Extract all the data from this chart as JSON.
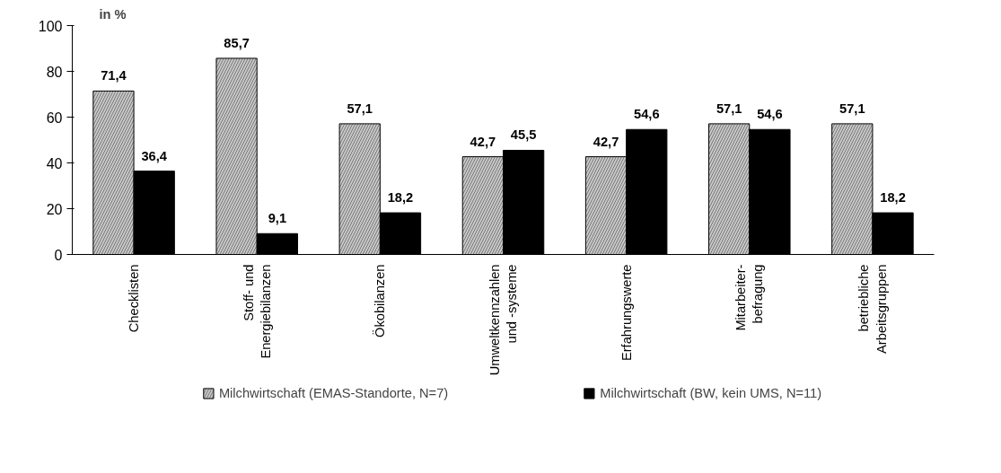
{
  "chart_data": {
    "type": "bar",
    "ylabel": "in %",
    "categories": [
      "Checklisten",
      "Stoff- und\nEnergiebilanzen",
      "Ökobilanzen",
      "Umweltkennzahlen\nund -systeme",
      "Erfahrungswerte",
      "Mitarbeiter-\nbefragung",
      "betriebliche\nArbeitsgruppen"
    ],
    "series": [
      {
        "name": "Milchwirtschaft (EMAS-Standorte, N=7)",
        "color": "#c8c8c8",
        "values": [
          71.4,
          85.7,
          57.1,
          42.7,
          42.7,
          57.1,
          57.1
        ],
        "value_labels": [
          "71,4",
          "85,7",
          "57,1",
          "42,7",
          "42,7",
          "57,1",
          "57,1"
        ]
      },
      {
        "name": "Milchwirtschaft (BW, kein UMS, N=11)",
        "color": "#000000",
        "values": [
          36.4,
          9.1,
          18.2,
          45.5,
          54.6,
          54.6,
          18.2
        ],
        "value_labels": [
          "36,4",
          "9,1",
          "18,2",
          "45,5",
          "54,6",
          "54,6",
          "18,2"
        ]
      }
    ],
    "ylim": [
      0,
      100
    ],
    "yticks": [
      0,
      20,
      40,
      60,
      80,
      100
    ],
    "legend": "bottom"
  }
}
